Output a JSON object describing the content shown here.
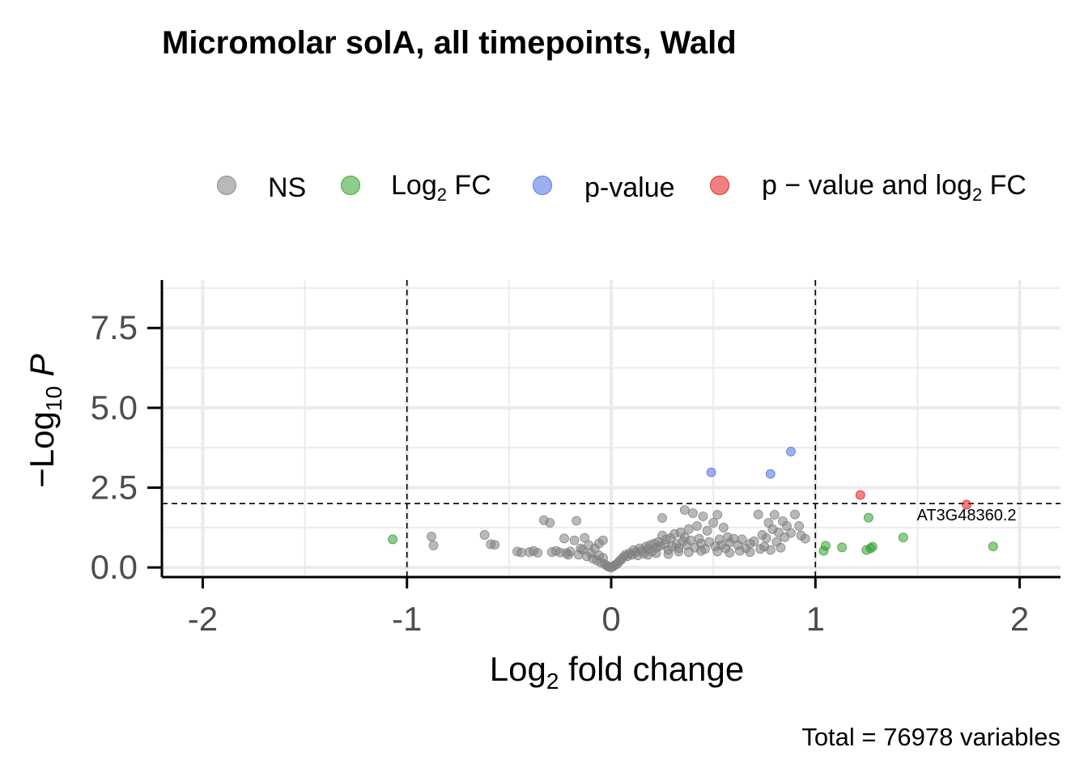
{
  "chart_data": {
    "type": "scatter",
    "title": "Micromolar solA, all timepoints, Wald",
    "xlabel": {
      "base": "Log",
      "sub": "2",
      "rest": " fold change"
    },
    "ylabel": {
      "pre": "−",
      "base": "Log",
      "sub": "10",
      "rest": " P"
    },
    "caption": "Total = 76978 variables",
    "xlim": [
      -2.2,
      2.2
    ],
    "ylim": [
      -0.3,
      9.0
    ],
    "x_ticks": [
      -2,
      -1,
      0,
      1,
      2
    ],
    "x_tick_labels": [
      "-2",
      "-1",
      "0",
      "1",
      "2"
    ],
    "y_ticks": [
      0,
      2.5,
      5,
      7.5
    ],
    "y_tick_labels": [
      "0.0",
      "2.5",
      "5.0",
      "7.5"
    ],
    "fc_cutoff": 1,
    "p_cutoff": 2.0,
    "legend": {
      "position": "top",
      "items": [
        {
          "key": "ns",
          "label": "NS",
          "color": "#808080"
        },
        {
          "key": "fc",
          "label": "Log",
          "sub": "2",
          "after": " FC",
          "color": "#33a02c"
        },
        {
          "key": "p",
          "label": "p-value",
          "color": "#4a6fe3"
        },
        {
          "key": "both",
          "label": "p − value and log",
          "sub": "2",
          "after": " FC",
          "color": "#e31a1c"
        }
      ]
    },
    "annotations": [
      {
        "text": "AT3G48360.2",
        "x": 1.74,
        "y": 1.48
      }
    ],
    "series": [
      {
        "key": "fc",
        "points": [
          [
            -1.07,
            0.88
          ],
          [
            1.05,
            0.68
          ],
          [
            1.04,
            0.52
          ],
          [
            1.13,
            0.63
          ],
          [
            1.25,
            0.55
          ],
          [
            1.27,
            0.6
          ],
          [
            1.28,
            0.65
          ],
          [
            1.26,
            1.56
          ],
          [
            1.43,
            0.94
          ],
          [
            1.87,
            0.66
          ]
        ]
      },
      {
        "key": "p",
        "points": [
          [
            0.49,
            2.98
          ],
          [
            0.78,
            2.93
          ],
          [
            0.88,
            3.63
          ]
        ]
      },
      {
        "key": "both",
        "points": [
          [
            1.22,
            2.27
          ],
          [
            1.74,
            1.97
          ]
        ]
      },
      {
        "key": "ns",
        "points": [
          [
            -0.88,
            0.97
          ],
          [
            -0.87,
            0.69
          ],
          [
            -0.62,
            1.02
          ],
          [
            -0.59,
            0.73
          ],
          [
            -0.57,
            0.71
          ],
          [
            -0.46,
            0.5
          ],
          [
            -0.44,
            0.47
          ],
          [
            -0.4,
            0.48
          ],
          [
            -0.36,
            0.46
          ],
          [
            -0.33,
            1.48
          ],
          [
            -0.3,
            1.4
          ],
          [
            -0.27,
            0.52
          ],
          [
            -0.25,
            0.47
          ],
          [
            -0.23,
            0.91
          ],
          [
            -0.22,
            0.45
          ],
          [
            -0.2,
            0.5
          ],
          [
            -0.18,
            0.85
          ],
          [
            -0.17,
            1.46
          ],
          [
            -0.16,
            0.4
          ],
          [
            -0.14,
            0.55
          ],
          [
            -0.13,
            0.93
          ],
          [
            -0.12,
            0.35
          ],
          [
            -0.1,
            0.45
          ],
          [
            -0.09,
            0.28
          ],
          [
            -0.08,
            0.6
          ],
          [
            -0.07,
            0.22
          ],
          [
            -0.06,
            0.38
          ],
          [
            -0.05,
            0.15
          ],
          [
            -0.04,
            0.3
          ],
          [
            -0.03,
            0.1
          ],
          [
            -0.02,
            0.05
          ],
          [
            -0.01,
            0.02
          ],
          [
            -0.38,
            0.52
          ],
          [
            -0.29,
            0.48
          ],
          [
            -0.21,
            0.4
          ],
          [
            -0.15,
            0.6
          ],
          [
            -0.11,
            0.7
          ],
          [
            -0.06,
            0.75
          ],
          [
            -0.04,
            0.85
          ],
          [
            0.0,
            0.0
          ],
          [
            0.01,
            0.03
          ],
          [
            0.02,
            0.08
          ],
          [
            0.03,
            0.12
          ],
          [
            0.04,
            0.2
          ],
          [
            0.05,
            0.25
          ],
          [
            0.06,
            0.33
          ],
          [
            0.07,
            0.4
          ],
          [
            0.08,
            0.35
          ],
          [
            0.09,
            0.45
          ],
          [
            0.1,
            0.4
          ],
          [
            0.11,
            0.55
          ],
          [
            0.12,
            0.48
          ],
          [
            0.13,
            0.38
          ],
          [
            0.14,
            0.6
          ],
          [
            0.15,
            0.52
          ],
          [
            0.16,
            0.44
          ],
          [
            0.17,
            0.65
          ],
          [
            0.18,
            0.58
          ],
          [
            0.19,
            0.7
          ],
          [
            0.2,
            0.5
          ],
          [
            0.21,
            0.75
          ],
          [
            0.22,
            0.62
          ],
          [
            0.23,
            0.8
          ],
          [
            0.24,
            0.68
          ],
          [
            0.25,
            1.0
          ],
          [
            0.25,
            1.55
          ],
          [
            0.26,
            0.72
          ],
          [
            0.27,
            0.88
          ],
          [
            0.28,
            0.55
          ],
          [
            0.29,
            0.92
          ],
          [
            0.3,
            0.66
          ],
          [
            0.31,
            1.05
          ],
          [
            0.32,
            0.74
          ],
          [
            0.33,
            0.6
          ],
          [
            0.34,
            1.1
          ],
          [
            0.35,
            0.82
          ],
          [
            0.36,
            0.95
          ],
          [
            0.36,
            1.8
          ],
          [
            0.37,
            0.7
          ],
          [
            0.38,
            1.2
          ],
          [
            0.39,
            0.85
          ],
          [
            0.4,
            1.7
          ],
          [
            0.41,
            0.62
          ],
          [
            0.42,
            1.3
          ],
          [
            0.43,
            0.9
          ],
          [
            0.44,
            0.75
          ],
          [
            0.45,
            1.6
          ],
          [
            0.46,
            0.58
          ],
          [
            0.47,
            1.15
          ],
          [
            0.48,
            0.8
          ],
          [
            0.5,
            1.4
          ],
          [
            0.51,
            0.66
          ],
          [
            0.52,
            1.65
          ],
          [
            0.53,
            0.88
          ],
          [
            0.54,
            0.7
          ],
          [
            0.55,
            1.25
          ],
          [
            0.56,
            0.6
          ],
          [
            0.57,
            0.95
          ],
          [
            0.58,
            0.78
          ],
          [
            0.6,
            0.9
          ],
          [
            0.62,
            0.7
          ],
          [
            0.64,
            0.88
          ],
          [
            0.66,
            0.6
          ],
          [
            0.68,
            0.75
          ],
          [
            0.7,
            0.82
          ],
          [
            0.72,
            1.66
          ],
          [
            0.73,
            0.58
          ],
          [
            0.74,
            1.02
          ],
          [
            0.75,
            0.65
          ],
          [
            0.76,
            0.92
          ],
          [
            0.77,
            1.4
          ],
          [
            0.78,
            0.55
          ],
          [
            0.79,
            1.2
          ],
          [
            0.8,
            1.65
          ],
          [
            0.81,
            0.8
          ],
          [
            0.82,
            1.1
          ],
          [
            0.83,
            0.62
          ],
          [
            0.84,
            1.45
          ],
          [
            0.85,
            0.95
          ],
          [
            0.86,
            1.3
          ],
          [
            0.88,
            1.08
          ],
          [
            0.9,
            1.66
          ],
          [
            0.92,
            1.3
          ],
          [
            0.93,
            1.0
          ],
          [
            0.95,
            0.9
          ],
          [
            0.33,
            0.5
          ],
          [
            0.38,
            0.48
          ],
          [
            0.44,
            0.52
          ],
          [
            0.52,
            0.5
          ],
          [
            0.58,
            0.46
          ],
          [
            0.63,
            0.52
          ],
          [
            0.68,
            0.48
          ],
          [
            0.22,
            0.45
          ],
          [
            0.18,
            0.4
          ],
          [
            0.28,
            0.42
          ]
        ]
      }
    ]
  }
}
